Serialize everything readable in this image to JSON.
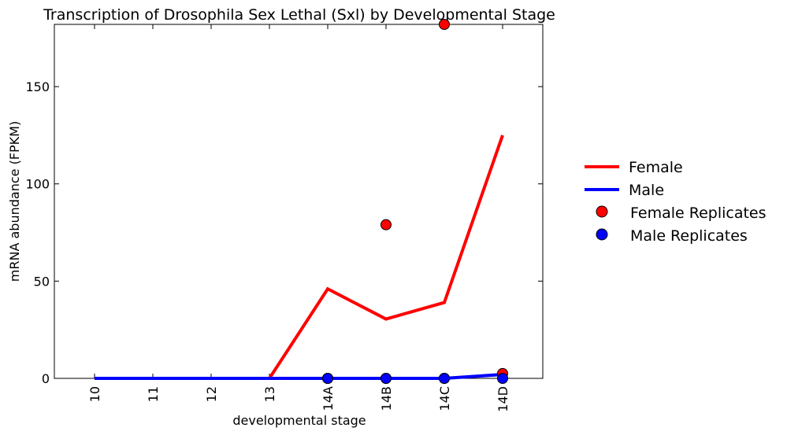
{
  "chart_data": {
    "type": "line",
    "title": "Transcription of Drosophila Sex Lethal (Sxl) by Developmental Stage",
    "xlabel": "developmental stage",
    "ylabel": "mRNA abundance (FPKM)",
    "categories": [
      "10",
      "11",
      "12",
      "13",
      "14A",
      "14B",
      "14C",
      "14D"
    ],
    "ylim": [
      0,
      182
    ],
    "yticks": [
      0,
      50,
      100,
      150
    ],
    "grid": false,
    "legend_position": "right",
    "series": [
      {
        "name": "Female",
        "kind": "line",
        "color": "#ff0000",
        "values": [
          0,
          0,
          0,
          0,
          46,
          30.5,
          39,
          125
        ]
      },
      {
        "name": "Male",
        "kind": "line",
        "color": "#0000ff",
        "values": [
          0,
          0,
          0,
          0,
          0,
          0,
          0,
          2
        ]
      }
    ],
    "replicates": [
      {
        "name": "Female Replicates",
        "color": "#ff0000",
        "points": [
          {
            "x": "14A",
            "y": 0
          },
          {
            "x": "14B",
            "y": 79
          },
          {
            "x": "14B",
            "y": 0
          },
          {
            "x": "14C",
            "y": 182
          },
          {
            "x": "14C",
            "y": 0
          },
          {
            "x": "14D",
            "y": 2.5
          }
        ]
      },
      {
        "name": "Male Replicates",
        "color": "#0000ff",
        "points": [
          {
            "x": "14A",
            "y": 0
          },
          {
            "x": "14B",
            "y": 0
          },
          {
            "x": "14C",
            "y": 0
          },
          {
            "x": "14D",
            "y": 0
          }
        ]
      }
    ]
  }
}
